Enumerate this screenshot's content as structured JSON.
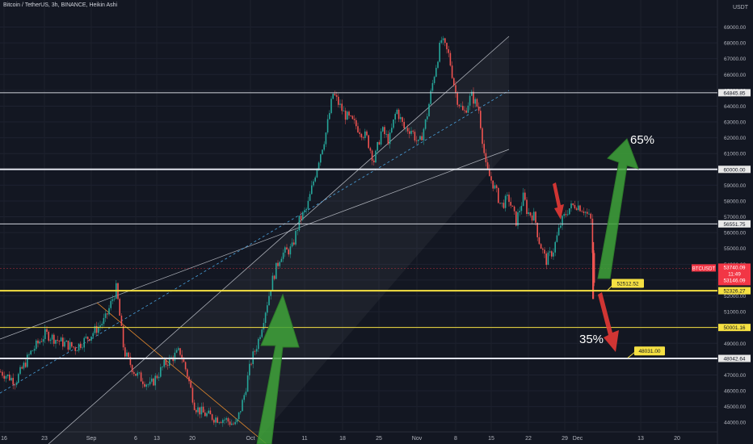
{
  "header": {
    "title": "Bitcoin / TetherUS, 3h, BINANCE, Heikin Ashi",
    "currency": "USDT"
  },
  "chart_data": {
    "type": "candlestick",
    "y_axis": {
      "min": 43500,
      "max": 70200,
      "ticks": [
        44000,
        45000,
        46000,
        47000,
        48000,
        49000,
        50000,
        51000,
        52000,
        53000,
        54000,
        55000,
        56000,
        57000,
        58000,
        59000,
        60000,
        61000,
        62000,
        63000,
        64000,
        65000,
        66000,
        67000,
        68000,
        69000
      ]
    },
    "x_axis": {
      "ticks": [
        {
          "label": "16"
        },
        {
          "label": "23"
        },
        {
          "label": "Sep"
        },
        {
          "label": "6"
        },
        {
          "label": "13"
        },
        {
          "label": "20"
        },
        {
          "label": "Oct"
        },
        {
          "label": "11"
        },
        {
          "label": "18"
        },
        {
          "label": "25"
        },
        {
          "label": "Nov"
        },
        {
          "label": "8"
        },
        {
          "label": "15"
        },
        {
          "label": "22"
        },
        {
          "label": "29"
        },
        {
          "label": "Dec"
        },
        {
          "label": "13"
        },
        {
          "label": "20"
        }
      ]
    },
    "horizontal_levels": [
      {
        "price": 64845.85,
        "label": "64845.85",
        "color": "#d1d4dc",
        "weight": "thin"
      },
      {
        "price": 60000.0,
        "label": "60000.00",
        "color": "#e0e3eb",
        "weight": "thick"
      },
      {
        "price": 56551.75,
        "label": "56551.75",
        "color": "#d1d4dc",
        "weight": "thin"
      },
      {
        "price": 52326.27,
        "label": "52326.27",
        "color": "#f5e042",
        "weight": "thick"
      },
      {
        "price": 50001.16,
        "label": "50001.16",
        "color": "#f5e042",
        "weight": "thin"
      },
      {
        "price": 48042.64,
        "label": "48042.64",
        "color": "#e0e3eb",
        "weight": "thick"
      }
    ],
    "current_price": {
      "symbol": "BTCUSDT",
      "price_label": "53740.09",
      "countdown": "11:49",
      "second_label": "53146.09",
      "color": "#f23645",
      "price": 53740.09
    },
    "callouts": [
      {
        "text": "52512.52",
        "price": 52512.52
      },
      {
        "text": "48031.00",
        "price": 48031.0
      }
    ],
    "scenarios": [
      {
        "text": "65%",
        "direction": "up",
        "color": "#3fa33a"
      },
      {
        "text": "35%",
        "direction": "down",
        "color": "#e53935"
      }
    ],
    "price_path": [
      [
        0,
        47200
      ],
      [
        0.02,
        46600
      ],
      [
        0.04,
        48400
      ],
      [
        0.06,
        49600
      ],
      [
        0.08,
        49100
      ],
      [
        0.1,
        48700
      ],
      [
        0.12,
        49500
      ],
      [
        0.14,
        50500
      ],
      [
        0.155,
        52500
      ],
      [
        0.165,
        48500
      ],
      [
        0.18,
        47100
      ],
      [
        0.2,
        46300
      ],
      [
        0.22,
        47700
      ],
      [
        0.24,
        48500
      ],
      [
        0.25,
        47000
      ],
      [
        0.26,
        45000
      ],
      [
        0.27,
        44600
      ],
      [
        0.285,
        44300
      ],
      [
        0.3,
        44200
      ],
      [
        0.315,
        43800
      ],
      [
        0.325,
        45500
      ],
      [
        0.335,
        47800
      ],
      [
        0.345,
        49200
      ],
      [
        0.355,
        51200
      ],
      [
        0.365,
        53200
      ],
      [
        0.375,
        54600
      ],
      [
        0.39,
        55000
      ],
      [
        0.4,
        56800
      ],
      [
        0.41,
        57500
      ],
      [
        0.425,
        60500
      ],
      [
        0.435,
        62200
      ],
      [
        0.445,
        64800
      ],
      [
        0.46,
        63500
      ],
      [
        0.475,
        62800
      ],
      [
        0.49,
        62000
      ],
      [
        0.5,
        60500
      ],
      [
        0.51,
        62500
      ],
      [
        0.52,
        61800
      ],
      [
        0.53,
        63800
      ],
      [
        0.54,
        62600
      ],
      [
        0.55,
        62500
      ],
      [
        0.56,
        61500
      ],
      [
        0.57,
        63200
      ],
      [
        0.58,
        65900
      ],
      [
        0.59,
        68200
      ],
      [
        0.6,
        67200
      ],
      [
        0.61,
        64600
      ],
      [
        0.62,
        63500
      ],
      [
        0.63,
        64700
      ],
      [
        0.64,
        63800
      ],
      [
        0.65,
        60000
      ],
      [
        0.66,
        59000
      ],
      [
        0.67,
        57700
      ],
      [
        0.68,
        58200
      ],
      [
        0.69,
        56700
      ],
      [
        0.7,
        58300
      ],
      [
        0.705,
        57300
      ],
      [
        0.715,
        57000
      ],
      [
        0.72,
        55600
      ],
      [
        0.73,
        54200
      ],
      [
        0.74,
        54900
      ],
      [
        0.75,
        56600
      ],
      [
        0.76,
        57500
      ],
      [
        0.77,
        57800
      ],
      [
        0.78,
        57500
      ],
      [
        0.79,
        56800
      ],
      [
        0.795,
        52500
      ]
    ]
  }
}
